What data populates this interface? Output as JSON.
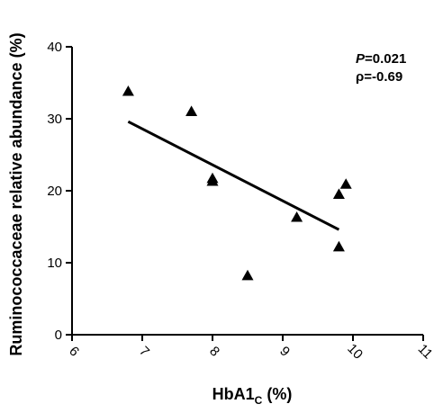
{
  "chart_data": {
    "type": "scatter",
    "title": "",
    "xlabel": "HbA1",
    "xlabel_subscript": "C",
    "xlabel_suffix": " (%)",
    "ylabel": "Ruminococcaceae relative abundance (%)",
    "xlim": [
      6,
      11
    ],
    "ylim": [
      0,
      40
    ],
    "x_ticks": [
      6,
      7,
      8,
      9,
      10,
      11
    ],
    "y_ticks": [
      0,
      10,
      20,
      30,
      40
    ],
    "x_tick_labels": [
      "6",
      "7",
      "8",
      "9",
      "10",
      "11"
    ],
    "y_tick_labels": [
      "0",
      "10",
      "20",
      "30",
      "40"
    ],
    "grid": false,
    "marker": "triangle",
    "marker_color": "#000000",
    "series": [
      {
        "x": [
          6.8,
          7.7,
          8.0,
          8.0,
          8.5,
          9.2,
          9.8,
          9.8,
          9.9
        ],
        "y": [
          33.8,
          31.0,
          21.7,
          21.3,
          8.2,
          16.3,
          12.2,
          19.5,
          20.9
        ]
      }
    ],
    "trendline": {
      "x": [
        6.8,
        9.8
      ],
      "y": [
        29.6,
        14.6
      ]
    },
    "annotations": {
      "p_label": "P",
      "p_value": "=0.021",
      "rho_text": "ρ=-0.69"
    }
  }
}
